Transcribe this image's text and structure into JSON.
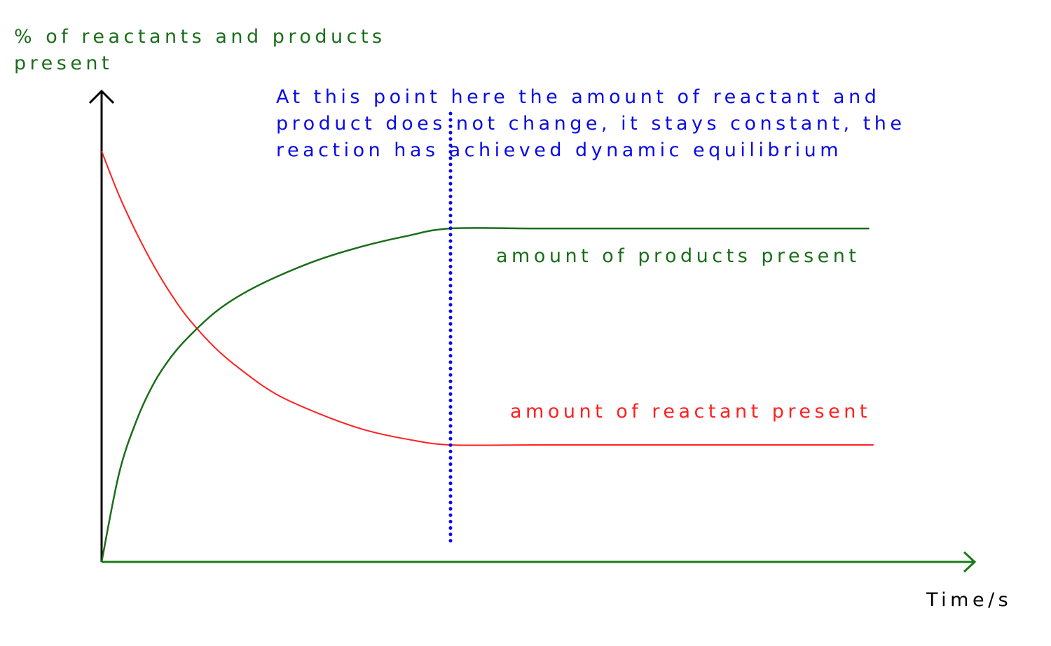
{
  "colors": {
    "products": "#1a6e1a",
    "reactants": "#ff2020",
    "equilibrium_line": "#0a0ae6",
    "axis_x": "#1a7a1a",
    "axis_y": "#000000",
    "ylabel": "#1a6e1a",
    "xlabel": "#000000",
    "annotation": "#0a0ae6"
  },
  "chart_data": {
    "type": "line",
    "title": "",
    "ylabel_lines": [
      "% of reactants and products",
      "present"
    ],
    "xlabel": "Time/s",
    "x_range": [
      0,
      100
    ],
    "y_range": [
      0,
      100
    ],
    "ticks": "none",
    "grid": false,
    "equilibrium_time": 40,
    "annotation_lines": [
      "At this point here the amount of reactant and",
      "product does not change, it stays constant, the",
      "reaction has achieved dynamic equilibrium"
    ],
    "series": [
      {
        "name": "amount of products present",
        "key": "products",
        "points": [
          [
            0,
            0
          ],
          [
            2,
            20
          ],
          [
            4,
            32
          ],
          [
            6,
            40.5
          ],
          [
            8,
            46.5
          ],
          [
            10,
            51
          ],
          [
            13,
            56.5
          ],
          [
            16,
            60.5
          ],
          [
            20,
            64.5
          ],
          [
            25,
            68.5
          ],
          [
            30,
            71.5
          ],
          [
            35,
            73.8
          ],
          [
            40,
            75.5
          ],
          [
            50,
            75.5
          ],
          [
            60,
            75.5
          ],
          [
            70,
            75.5
          ],
          [
            80,
            75.5
          ],
          [
            88,
            75.5
          ]
        ]
      },
      {
        "name": "amount of reactant present",
        "key": "reactants",
        "points": [
          [
            0,
            93
          ],
          [
            2,
            83
          ],
          [
            4,
            74.5
          ],
          [
            6,
            67
          ],
          [
            8,
            60.5
          ],
          [
            10,
            55
          ],
          [
            13,
            48.5
          ],
          [
            16,
            43.5
          ],
          [
            20,
            38
          ],
          [
            25,
            33.5
          ],
          [
            30,
            30
          ],
          [
            35,
            27.8
          ],
          [
            40,
            26.5
          ],
          [
            50,
            26.5
          ],
          [
            60,
            26.5
          ],
          [
            70,
            26.5
          ],
          [
            80,
            26.5
          ],
          [
            88.5,
            26.5
          ]
        ]
      }
    ]
  }
}
